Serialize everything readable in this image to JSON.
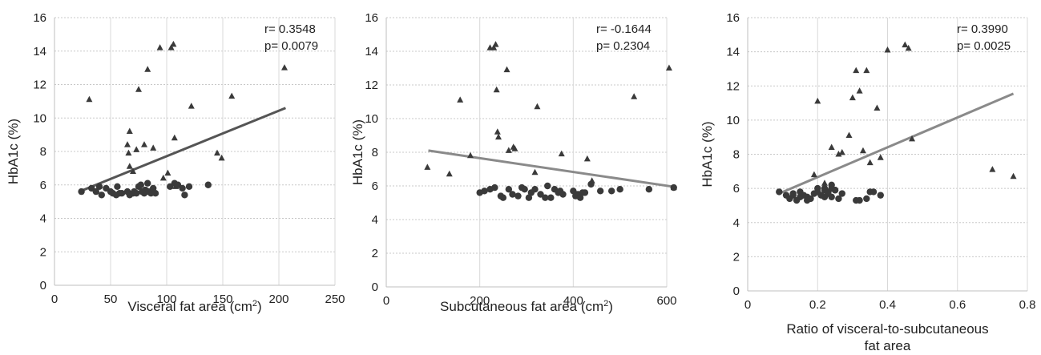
{
  "chart_data": [
    {
      "type": "scatter",
      "xlabel": "Visceral fat area (cm",
      "xlabel_sup": "2",
      "xlabel_end": ")",
      "ylabel": "HbA1c (%)",
      "xlim": [
        0,
        250
      ],
      "ylim": [
        0,
        16
      ],
      "xticks": [
        "0",
        "50",
        "100",
        "150",
        "200",
        "250"
      ],
      "yticks": [
        "0",
        "2",
        "4",
        "6",
        "8",
        "10",
        "12",
        "14",
        "16"
      ],
      "grid": true,
      "stats": {
        "r": "r= 0.3548",
        "p": "p= 0.0079"
      },
      "trendline": {
        "x": [
          24,
          206
        ],
        "y": [
          5.65,
          10.6
        ]
      },
      "series": [
        {
          "marker": "triangle",
          "color": "#3a3a3a",
          "x": [
            31,
            65,
            66,
            67,
            67,
            70,
            73,
            75,
            80,
            83,
            88,
            94,
            101,
            104,
            106,
            107,
            122,
            145,
            149,
            158,
            205,
            97,
            108
          ],
          "y": [
            11.1,
            8.4,
            7.9,
            9.2,
            7.1,
            6.8,
            8.1,
            11.7,
            8.4,
            12.9,
            8.2,
            14.2,
            6.7,
            14.2,
            14.4,
            8.8,
            10.7,
            7.9,
            7.6,
            11.3,
            13.0,
            6.4,
            5.9
          ]
        },
        {
          "marker": "circle",
          "color": "#3a3a3a",
          "x": [
            24,
            33,
            37,
            40,
            42,
            46,
            50,
            52,
            55,
            56,
            58,
            60,
            65,
            67,
            70,
            71,
            73,
            75,
            77,
            78,
            80,
            81,
            83,
            84,
            86,
            88,
            90,
            103,
            107,
            110,
            114,
            116,
            120,
            137
          ],
          "y": [
            5.6,
            5.8,
            5.6,
            5.9,
            5.4,
            5.8,
            5.6,
            5.5,
            5.4,
            5.9,
            5.5,
            5.5,
            5.6,
            5.4,
            5.5,
            5.6,
            5.5,
            5.9,
            6.0,
            5.6,
            5.5,
            5.7,
            6.1,
            5.6,
            5.5,
            5.8,
            5.5,
            5.9,
            6.1,
            6.0,
            5.8,
            5.4,
            5.9,
            6.0
          ]
        }
      ]
    },
    {
      "type": "scatter",
      "xlabel": "Subcutaneous fat area (cm",
      "xlabel_sup": "2",
      "xlabel_end": ")",
      "ylabel": "HbA1c (%)",
      "xlim": [
        0,
        600
      ],
      "ylim": [
        0,
        16
      ],
      "xticks": [
        "0",
        "200",
        "400",
        "600"
      ],
      "yticks": [
        "0",
        "2",
        "4",
        "6",
        "8",
        "10",
        "12",
        "14",
        "16"
      ],
      "grid": true,
      "stats": {
        "r": "r= -0.1644",
        "p": "p= 0.2304"
      },
      "trendline": {
        "x": [
          90,
          615
        ],
        "y": [
          8.1,
          5.95
        ]
      },
      "series": [
        {
          "marker": "triangle",
          "color": "#3a3a3a",
          "x": [
            88,
            135,
            158,
            180,
            222,
            230,
            234,
            236,
            238,
            240,
            258,
            262,
            272,
            275,
            318,
            323,
            375,
            430,
            440,
            530,
            605,
            615
          ],
          "y": [
            7.1,
            6.7,
            11.1,
            7.8,
            14.2,
            14.2,
            14.4,
            11.7,
            9.2,
            8.9,
            12.9,
            8.1,
            8.3,
            8.2,
            6.8,
            10.7,
            7.9,
            7.6,
            6.3,
            11.3,
            13.0,
            5.9
          ]
        },
        {
          "marker": "circle",
          "color": "#3a3a3a",
          "x": [
            200,
            210,
            222,
            232,
            245,
            250,
            262,
            270,
            282,
            290,
            296,
            305,
            310,
            318,
            330,
            340,
            345,
            352,
            360,
            368,
            372,
            378,
            400,
            405,
            410,
            415,
            420,
            425,
            438,
            458,
            482,
            500,
            562,
            615
          ],
          "y": [
            5.6,
            5.7,
            5.8,
            5.9,
            5.4,
            5.3,
            5.8,
            5.5,
            5.4,
            5.9,
            5.8,
            5.3,
            5.6,
            5.8,
            5.5,
            5.3,
            6.0,
            5.3,
            5.8,
            5.6,
            5.7,
            5.5,
            5.7,
            5.4,
            5.5,
            5.3,
            5.6,
            5.6,
            6.1,
            5.7,
            5.7,
            5.8,
            5.8,
            5.9
          ]
        }
      ]
    },
    {
      "type": "scatter",
      "xlabel": "Ratio of visceral-to-subcutaneous",
      "xlabel2": "fat area",
      "ylabel": "HbA1c (%)",
      "xlim": [
        0,
        0.8
      ],
      "ylim": [
        0,
        16
      ],
      "xticks": [
        "0",
        "0.2",
        "0.4",
        "0.6",
        "0.8"
      ],
      "yticks": [
        "0",
        "2",
        "4",
        "6",
        "8",
        "10",
        "12",
        "14",
        "16"
      ],
      "grid": true,
      "stats": {
        "r": "r= 0.3990",
        "p": "p= 0.0025"
      },
      "trendline": {
        "x": [
          0.09,
          0.76
        ],
        "y": [
          5.7,
          11.55
        ]
      },
      "series": [
        {
          "marker": "triangle",
          "color": "#3a3a3a",
          "x": [
            0.19,
            0.2,
            0.22,
            0.24,
            0.26,
            0.27,
            0.29,
            0.3,
            0.31,
            0.32,
            0.33,
            0.34,
            0.35,
            0.37,
            0.38,
            0.4,
            0.45,
            0.46,
            0.47,
            0.7,
            0.76
          ],
          "y": [
            6.8,
            11.1,
            6.3,
            8.4,
            8.0,
            8.1,
            9.1,
            11.3,
            12.9,
            11.7,
            8.2,
            12.9,
            7.5,
            10.7,
            7.8,
            14.1,
            14.4,
            14.2,
            8.9,
            7.1,
            6.7
          ]
        },
        {
          "marker": "circle",
          "color": "#3a3a3a",
          "x": [
            0.09,
            0.11,
            0.12,
            0.13,
            0.14,
            0.15,
            0.15,
            0.16,
            0.17,
            0.18,
            0.19,
            0.2,
            0.21,
            0.22,
            0.22,
            0.23,
            0.23,
            0.24,
            0.24,
            0.25,
            0.26,
            0.27,
            0.31,
            0.32,
            0.34,
            0.35,
            0.36,
            0.38,
            0.13,
            0.17,
            0.2,
            0.24,
            0.25,
            0.22
          ],
          "y": [
            5.8,
            5.6,
            5.4,
            5.7,
            5.3,
            5.5,
            5.8,
            5.6,
            5.5,
            5.4,
            5.7,
            5.8,
            5.6,
            5.9,
            6.0,
            5.7,
            5.8,
            6.0,
            5.5,
            5.9,
            5.4,
            5.7,
            5.3,
            5.3,
            5.4,
            5.8,
            5.8,
            5.6,
            5.6,
            5.3,
            6.0,
            6.2,
            5.9,
            5.5
          ]
        }
      ]
    }
  ]
}
